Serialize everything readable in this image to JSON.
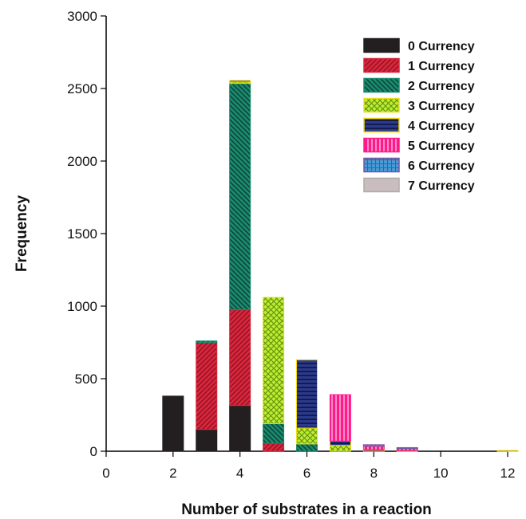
{
  "chart_data": {
    "type": "bar",
    "stacked": true,
    "title": "",
    "xlabel": "Number of substrates in a reaction",
    "ylabel": "Frequency",
    "xlim": [
      0,
      12
    ],
    "ylim": [
      0,
      3000
    ],
    "xticks": [
      0,
      2,
      4,
      6,
      8,
      10,
      12
    ],
    "yticks": [
      0,
      500,
      1000,
      1500,
      2000,
      2500,
      3000
    ],
    "grid": false,
    "legend_position": "top-right",
    "x": [
      2,
      3,
      4,
      5,
      6,
      7,
      8,
      9,
      12
    ],
    "series": [
      {
        "name": "0 Currency",
        "color": "#231f20",
        "pattern": "solid",
        "values": [
          380,
          150,
          315,
          0,
          0,
          0,
          0,
          0,
          0
        ]
      },
      {
        "name": "1 Currency",
        "color": "#d7263d",
        "pattern": "diagonal-hatch",
        "values": [
          0,
          600,
          660,
          55,
          0,
          0,
          0,
          0,
          0
        ]
      },
      {
        "name": "2 Currency",
        "color": "#1a8a6e",
        "pattern": "diagonal-hatch",
        "values": [
          0,
          10,
          1560,
          135,
          50,
          0,
          0,
          0,
          0
        ]
      },
      {
        "name": "3 Currency",
        "color": "#a4e020",
        "pattern": "crosshatch",
        "values": [
          0,
          0,
          10,
          870,
          110,
          40,
          0,
          0,
          0
        ]
      },
      {
        "name": "4 Currency",
        "color": "#232d7a",
        "pattern": "horizontal-lines",
        "values": [
          0,
          0,
          10,
          0,
          470,
          30,
          10,
          5,
          5
        ]
      },
      {
        "name": "5 Currency",
        "color": "#ff1a8c",
        "pattern": "vertical-lines",
        "values": [
          0,
          0,
          0,
          0,
          0,
          320,
          25,
          15,
          0
        ]
      },
      {
        "name": "6 Currency",
        "color": "#3aa0e0",
        "pattern": "grid",
        "values": [
          0,
          0,
          0,
          0,
          0,
          0,
          10,
          5,
          0
        ]
      },
      {
        "name": "7 Currency",
        "color": "#c9bdbd",
        "pattern": "solid",
        "values": [
          0,
          0,
          0,
          0,
          0,
          0,
          0,
          0,
          0
        ]
      }
    ]
  }
}
